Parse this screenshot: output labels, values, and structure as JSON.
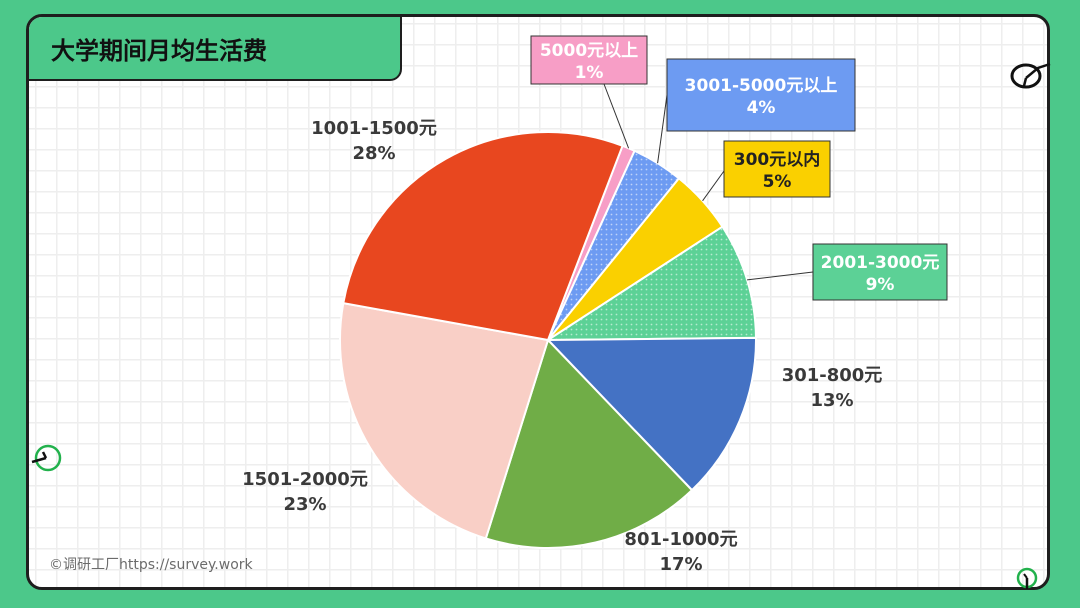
{
  "title": "大学期间月均生活费",
  "watermark": "©调研工厂https://survey.work",
  "chart_data": {
    "type": "pie",
    "title": "大学期间月均生活费",
    "start_angle_deg": 21,
    "direction": "clockwise",
    "slices": [
      {
        "label": "5000元以上",
        "value": 1,
        "display": "1%",
        "color": "#f79ec6",
        "pattern": false,
        "callout": "box"
      },
      {
        "label": "3001-5000元以上",
        "value": 4,
        "display": "4%",
        "color": "#6d9bf2",
        "pattern": true,
        "callout": "box"
      },
      {
        "label": "300元以内",
        "value": 5,
        "display": "5%",
        "color": "#fad000",
        "pattern": false,
        "callout": "box"
      },
      {
        "label": "2001-3000元",
        "value": 9,
        "display": "9%",
        "color": "#5cd196",
        "pattern": true,
        "callout": "box"
      },
      {
        "label": "301-800元",
        "value": 13,
        "display": "13%",
        "color": "#4472c4",
        "pattern": false,
        "callout": "text"
      },
      {
        "label": "801-1000元",
        "value": 17,
        "display": "17%",
        "color": "#70ad47",
        "pattern": false,
        "callout": "text"
      },
      {
        "label": "1501-2000元",
        "value": 23,
        "display": "23%",
        "color": "#f9cfc6",
        "pattern": false,
        "callout": "text"
      },
      {
        "label": "1001-1500元",
        "value": 28,
        "display": "28%",
        "color": "#e8471f",
        "pattern": false,
        "callout": "text"
      }
    ]
  }
}
